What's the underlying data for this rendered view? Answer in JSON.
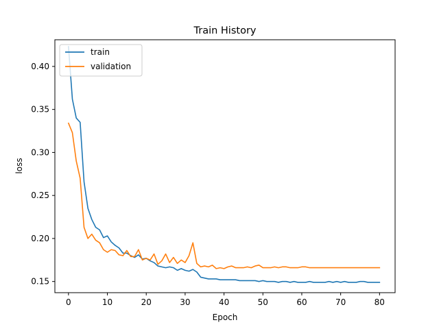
{
  "chart_data": {
    "type": "line",
    "title": "Train History",
    "xlabel": "Epoch",
    "ylabel": "loss",
    "xlim": [
      -3.5,
      84
    ],
    "ylim": [
      0.137,
      0.431
    ],
    "xticks": [
      0,
      10,
      20,
      30,
      40,
      50,
      60,
      70,
      80
    ],
    "yticks": [
      0.15,
      0.2,
      0.25,
      0.3,
      0.35,
      0.4
    ],
    "ytick_labels": [
      "0.15",
      "0.20",
      "0.25",
      "0.30",
      "0.35",
      "0.40"
    ],
    "grid": false,
    "legend_position": "upper-left",
    "series": [
      {
        "name": "train",
        "color": "#1f77b4",
        "values": [
          0.423,
          0.362,
          0.34,
          0.335,
          0.266,
          0.235,
          0.222,
          0.213,
          0.21,
          0.201,
          0.203,
          0.196,
          0.192,
          0.189,
          0.183,
          0.183,
          0.18,
          0.178,
          0.181,
          0.176,
          0.177,
          0.174,
          0.172,
          0.168,
          0.167,
          0.166,
          0.167,
          0.166,
          0.163,
          0.165,
          0.163,
          0.162,
          0.164,
          0.161,
          0.155,
          0.154,
          0.153,
          0.153,
          0.153,
          0.152,
          0.152,
          0.152,
          0.152,
          0.152,
          0.151,
          0.151,
          0.151,
          0.151,
          0.151,
          0.15,
          0.151,
          0.15,
          0.15,
          0.15,
          0.149,
          0.15,
          0.15,
          0.149,
          0.15,
          0.149,
          0.149,
          0.149,
          0.15,
          0.149,
          0.149,
          0.149,
          0.149,
          0.15,
          0.149,
          0.15,
          0.149,
          0.15,
          0.149,
          0.149,
          0.149,
          0.15,
          0.15,
          0.149,
          0.149,
          0.149,
          0.149
        ]
      },
      {
        "name": "validation",
        "color": "#ff7f0e",
        "values": [
          0.334,
          0.323,
          0.29,
          0.27,
          0.213,
          0.2,
          0.205,
          0.198,
          0.195,
          0.187,
          0.184,
          0.187,
          0.186,
          0.181,
          0.18,
          0.186,
          0.179,
          0.179,
          0.187,
          0.175,
          0.177,
          0.175,
          0.182,
          0.17,
          0.174,
          0.182,
          0.172,
          0.178,
          0.171,
          0.175,
          0.172,
          0.18,
          0.195,
          0.171,
          0.167,
          0.168,
          0.167,
          0.169,
          0.165,
          0.166,
          0.165,
          0.167,
          0.168,
          0.166,
          0.166,
          0.166,
          0.167,
          0.166,
          0.168,
          0.169,
          0.166,
          0.166,
          0.166,
          0.167,
          0.166,
          0.167,
          0.167,
          0.166,
          0.166,
          0.166,
          0.167,
          0.167,
          0.166,
          0.166,
          0.166,
          0.166,
          0.166,
          0.166,
          0.166,
          0.166,
          0.166,
          0.166,
          0.166,
          0.166,
          0.166,
          0.166,
          0.166,
          0.166,
          0.166,
          0.166,
          0.166
        ]
      }
    ]
  }
}
